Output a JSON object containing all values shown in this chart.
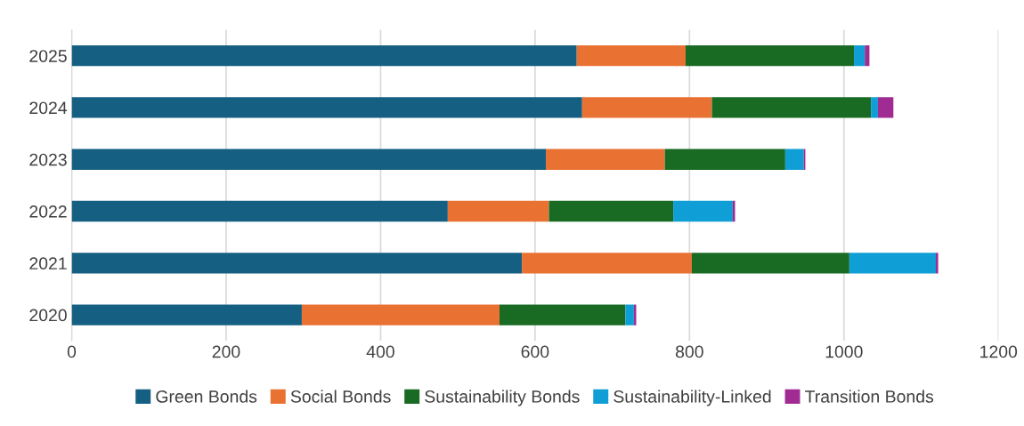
{
  "chart_data": {
    "type": "bar",
    "orientation": "horizontal",
    "stacked": true,
    "categories": [
      "2025",
      "2024",
      "2023",
      "2022",
      "2021",
      "2020"
    ],
    "series": [
      {
        "name": "Green Bonds",
        "color": "#156082",
        "values": [
          654,
          661,
          614,
          487,
          583,
          298
        ]
      },
      {
        "name": "Social Bonds",
        "color": "#e97132",
        "values": [
          141,
          168,
          154,
          131,
          220,
          256
        ]
      },
      {
        "name": "Sustainability Bonds",
        "color": "#196b24",
        "values": [
          218,
          206,
          156,
          161,
          204,
          163
        ]
      },
      {
        "name": "Sustainability-Linked",
        "color": "#0f9ed5",
        "values": [
          14,
          9,
          24,
          77,
          112,
          11
        ]
      },
      {
        "name": "Transition Bonds",
        "color": "#a02b93",
        "values": [
          6,
          20,
          2,
          3,
          3,
          3
        ]
      }
    ],
    "xlim": [
      0,
      1200
    ],
    "xticks": [
      0,
      200,
      400,
      600,
      800,
      1000,
      1200
    ],
    "grid": "x",
    "legend": "bottom"
  }
}
